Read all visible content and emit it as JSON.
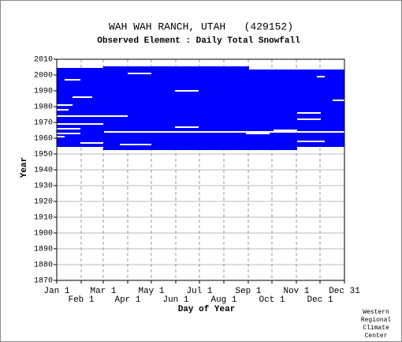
{
  "chart_data": {
    "type": "coverage",
    "title": "WAH WAH RANCH, UTAH   (429152)",
    "subtitle": "Observed Element : Daily Total Snowfall",
    "xlabel": "Day of Year",
    "ylabel": "Year",
    "credit": [
      "Western",
      "Regional",
      "Climate",
      "Center"
    ],
    "color": "#0000ff",
    "gap_color": "#ffffff",
    "grid": true,
    "xlim": [
      0,
      365
    ],
    "ylim": [
      1870,
      2010
    ],
    "yticks": [
      1870,
      1880,
      1890,
      1900,
      1910,
      1920,
      1930,
      1940,
      1950,
      1960,
      1970,
      1980,
      1990,
      2000,
      2010
    ],
    "xticks": [
      {
        "value": 0,
        "label": "Jan 1"
      },
      {
        "value": 31,
        "label": "Feb 1"
      },
      {
        "value": 59,
        "label": "Mar 1"
      },
      {
        "value": 90,
        "label": "Apr 1"
      },
      {
        "value": 120,
        "label": "May 1"
      },
      {
        "value": 151,
        "label": "Jun 1"
      },
      {
        "value": 181,
        "label": "Jul 1"
      },
      {
        "value": 212,
        "label": "Aug 1"
      },
      {
        "value": 243,
        "label": "Sep 1"
      },
      {
        "value": 273,
        "label": "Oct 1"
      },
      {
        "value": 304,
        "label": "Nov 1"
      },
      {
        "value": 334,
        "label": "Dec 1"
      },
      {
        "value": 365,
        "label": "Dec 31"
      }
    ],
    "blocks": [
      {
        "day_start": 0,
        "day_end": 59,
        "year_start": 1955,
        "year_end": 2004
      },
      {
        "day_start": 59,
        "day_end": 244,
        "year_start": 1953,
        "year_end": 2005
      },
      {
        "day_start": 244,
        "day_end": 305,
        "year_start": 1953,
        "year_end": 2003
      },
      {
        "day_start": 305,
        "day_end": 365,
        "year_start": 1955,
        "year_end": 2003
      }
    ],
    "gaps": [
      {
        "year": 1974,
        "day_start": 0,
        "day_end": 90
      },
      {
        "year": 1966,
        "day_start": 0,
        "day_end": 30
      },
      {
        "year": 1963,
        "day_start": 0,
        "day_end": 30
      },
      {
        "year": 1957,
        "day_start": 30,
        "day_end": 59
      },
      {
        "year": 1969,
        "day_start": 0,
        "day_end": 59
      },
      {
        "year": 1990,
        "day_start": 150,
        "day_end": 180
      },
      {
        "year": 1967,
        "day_start": 150,
        "day_end": 180
      },
      {
        "year": 1964,
        "day_start": 60,
        "day_end": 365
      },
      {
        "year": 1956,
        "day_start": 80,
        "day_end": 120
      },
      {
        "year": 1981,
        "day_start": 0,
        "day_end": 20
      },
      {
        "year": 1986,
        "day_start": 20,
        "day_end": 45
      },
      {
        "year": 1997,
        "day_start": 10,
        "day_end": 30
      },
      {
        "year": 2001,
        "day_start": 90,
        "day_end": 120
      },
      {
        "year": 1963,
        "day_start": 240,
        "day_end": 270
      },
      {
        "year": 1965,
        "day_start": 275,
        "day_end": 305
      },
      {
        "year": 1972,
        "day_start": 305,
        "day_end": 335
      },
      {
        "year": 1976,
        "day_start": 305,
        "day_end": 335
      },
      {
        "year": 1958,
        "day_start": 305,
        "day_end": 340
      },
      {
        "year": 1984,
        "day_start": 350,
        "day_end": 365
      },
      {
        "year": 1999,
        "day_start": 330,
        "day_end": 340
      },
      {
        "year": 1978,
        "day_start": 0,
        "day_end": 15
      },
      {
        "year": 1961,
        "day_start": 0,
        "day_end": 10
      }
    ]
  }
}
